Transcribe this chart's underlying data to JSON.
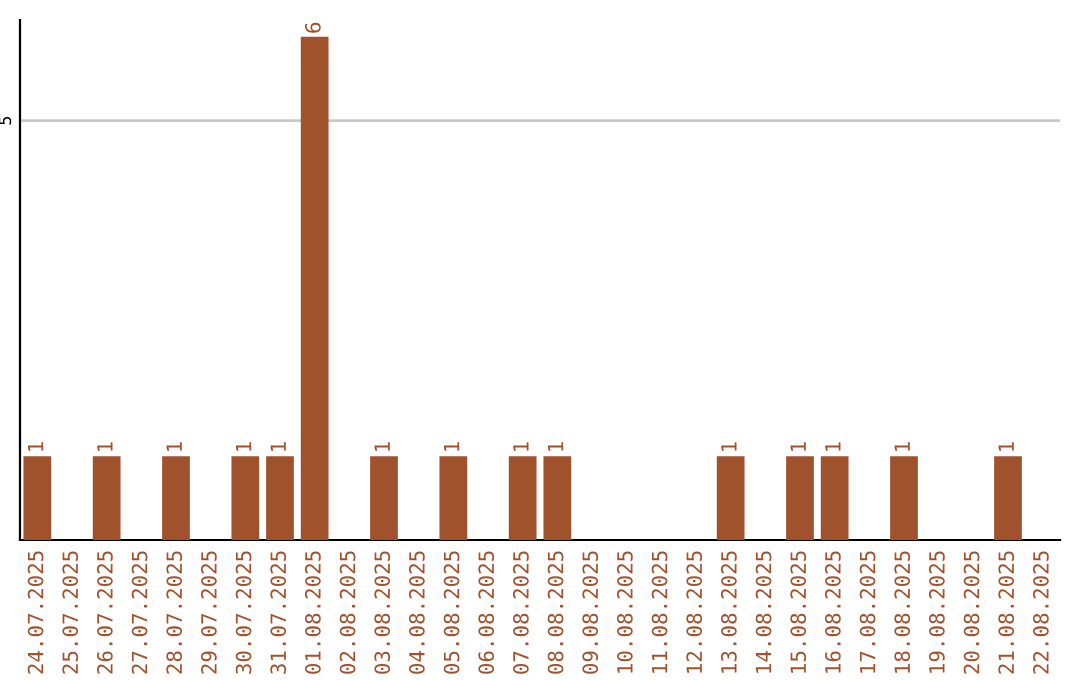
{
  "chart_data": {
    "type": "bar",
    "categories": [
      "24.07.2025",
      "25.07.2025",
      "26.07.2025",
      "27.07.2025",
      "28.07.2025",
      "29.07.2025",
      "30.07.2025",
      "31.07.2025",
      "01.08.2025",
      "02.08.2025",
      "03.08.2025",
      "04.08.2025",
      "05.08.2025",
      "06.08.2025",
      "07.08.2025",
      "08.08.2025",
      "09.08.2025",
      "10.08.2025",
      "11.08.2025",
      "12.08.2025",
      "13.08.2025",
      "14.08.2025",
      "15.08.2025",
      "16.08.2025",
      "17.08.2025",
      "18.08.2025",
      "19.08.2025",
      "20.08.2025",
      "21.08.2025",
      "22.08.2025"
    ],
    "values": [
      1,
      0,
      1,
      0,
      1,
      0,
      1,
      1,
      6,
      0,
      1,
      0,
      1,
      0,
      1,
      1,
      0,
      0,
      0,
      0,
      1,
      0,
      1,
      1,
      0,
      1,
      0,
      0,
      1,
      0
    ],
    "value_labels": [
      "1",
      null,
      "1",
      null,
      "1",
      null,
      "1",
      "1",
      "6",
      null,
      "1",
      null,
      "1",
      null,
      "1",
      "1",
      null,
      null,
      null,
      null,
      "1",
      null,
      "1",
      "1",
      null,
      "1",
      null,
      null,
      "1",
      null
    ],
    "color": "#a0522d",
    "ylim": [
      0,
      6.2
    ],
    "yticks": [
      5
    ],
    "grid": "y",
    "legend": false
  }
}
